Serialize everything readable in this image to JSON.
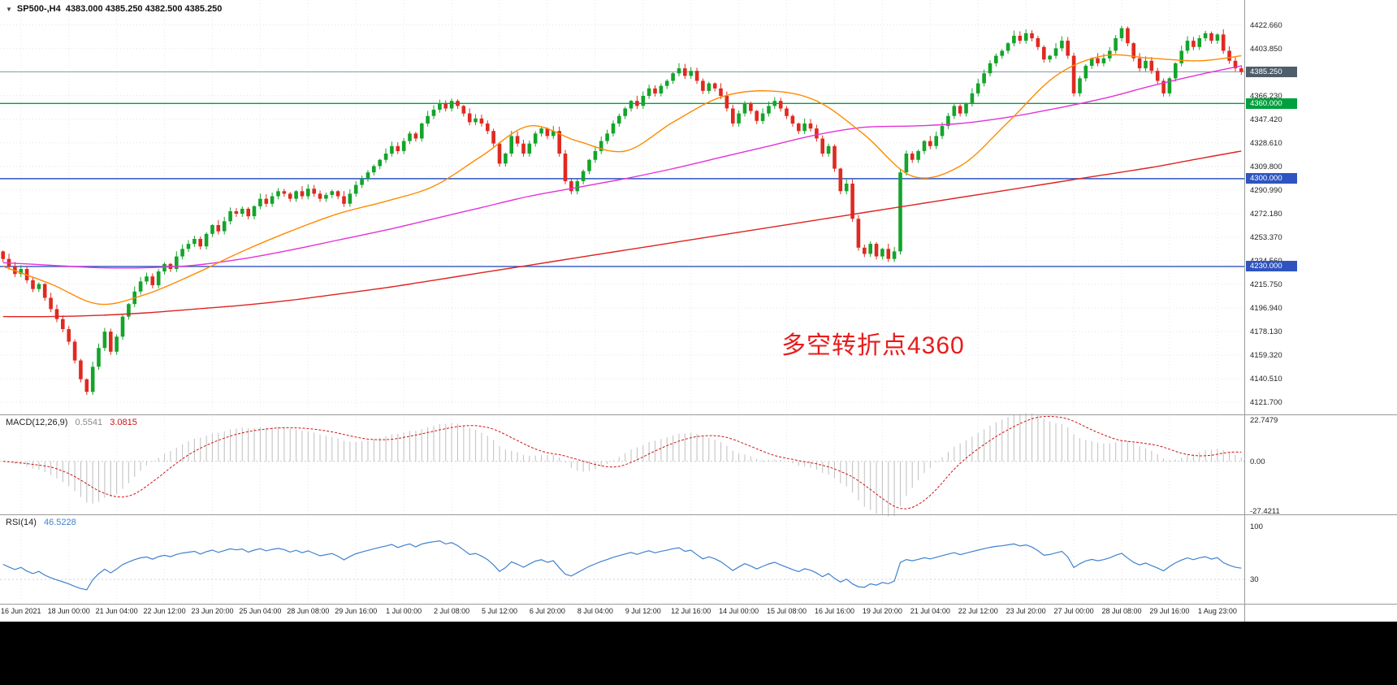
{
  "header": {
    "symbol_period": "SP500-,H4",
    "quote": "4383.000 4385.250 4382.500 4385.250"
  },
  "annotation": {
    "text": "多空转折点4360",
    "color": "#e81c1c"
  },
  "chart_data": {
    "type": "candlestick",
    "symbol_period": "SP500-,H4",
    "ohlc_display": {
      "open": "4383.000",
      "high": "4385.250",
      "low": "4382.500",
      "close": "4385.250"
    },
    "current_price": 4385.25,
    "first_open": 4242,
    "closes": [
      4236,
      4230,
      4224,
      4228,
      4219,
      4212,
      4216,
      4205,
      4196,
      4188,
      4180,
      4170,
      4155,
      4140,
      4130,
      4150,
      4165,
      4178,
      4162,
      4174,
      4190,
      4200,
      4210,
      4218,
      4222,
      4215,
      4226,
      4232,
      4228,
      4238,
      4244,
      4248,
      4252,
      4246,
      4256,
      4263,
      4258,
      4266,
      4274,
      4272,
      4276,
      4270,
      4278,
      4284,
      4280,
      4286,
      4290,
      4288,
      4284,
      4290,
      4286,
      4292,
      4288,
      4284,
      4287,
      4290,
      4286,
      4280,
      4288,
      4295,
      4300,
      4305,
      4310,
      4315,
      4320,
      4326,
      4322,
      4330,
      4336,
      4332,
      4344,
      4350,
      4355,
      4360,
      4356,
      4362,
      4358,
      4352,
      4345,
      4348,
      4344,
      4338,
      4328,
      4312,
      4320,
      4334,
      4328,
      4320,
      4328,
      4336,
      4340,
      4334,
      4338,
      4320,
      4298,
      4290,
      4298,
      4306,
      4315,
      4322,
      4330,
      4336,
      4344,
      4350,
      4356,
      4362,
      4358,
      4366,
      4372,
      4368,
      4374,
      4378,
      4384,
      4388,
      4382,
      4386,
      4378,
      4370,
      4376,
      4372,
      4366,
      4356,
      4344,
      4352,
      4360,
      4354,
      4346,
      4352,
      4358,
      4362,
      4356,
      4350,
      4344,
      4338,
      4344,
      4340,
      4332,
      4320,
      4326,
      4308,
      4290,
      4296,
      4268,
      4245,
      4240,
      4248,
      4238,
      4244,
      4236,
      4242,
      4305,
      4320,
      4315,
      4322,
      4330,
      4326,
      4334,
      4342,
      4350,
      4358,
      4352,
      4360,
      4368,
      4376,
      4384,
      4392,
      4398,
      4402,
      4408,
      4414,
      4410,
      4416,
      4412,
      4405,
      4395,
      4398,
      4404,
      4410,
      4398,
      4368,
      4380,
      4390,
      4396,
      4392,
      4396,
      4402,
      4412,
      4420,
      4408,
      4396,
      4388,
      4394,
      4386,
      4378,
      4368,
      4380,
      4392,
      4402,
      4410,
      4405,
      4412,
      4416,
      4410,
      4415,
      4402,
      4394,
      4388,
      4385.25
    ],
    "moving_averages": [
      {
        "name": "ma-fast",
        "color": "#ff8a00",
        "anchors": [
          4230,
          4216,
          4200,
          4208,
          4224,
          4242,
          4258,
          4272,
          4282,
          4294,
          4318,
          4342,
          4330,
          4322,
          4345,
          4365,
          4370,
          4362,
          4335,
          4302,
          4310,
          4345,
          4382,
          4398,
          4396,
          4394,
          4398
        ]
      },
      {
        "name": "ma-medium",
        "color": "#e332d8",
        "anchors": [
          4233,
          4231,
          4229,
          4229,
          4231,
          4236,
          4243,
          4251,
          4259,
          4268,
          4277,
          4286,
          4293,
          4300,
          4308,
          4317,
          4326,
          4335,
          4341,
          4342,
          4344,
          4349,
          4356,
          4364,
          4374,
          4383,
          4390
        ]
      },
      {
        "name": "ma-slow",
        "color": "#df2222",
        "anchors": [
          4190,
          4190,
          4191,
          4193,
          4196,
          4199,
          4203,
          4208,
          4213,
          4219,
          4225,
          4231,
          4237,
          4243,
          4249,
          4255,
          4261,
          4267,
          4273,
          4279,
          4285,
          4291,
          4297,
          4303,
          4309,
          4316,
          4322
        ]
      }
    ],
    "levels": {
      "pivot_green": 4360.0,
      "support_blue": [
        4300.0,
        4230.0
      ],
      "current": 4385.25
    },
    "y_axis_labels": [
      "4422.660",
      "4403.850",
      "4385.040",
      "4366.230",
      "4347.420",
      "4328.610",
      "4309.800",
      "4290.990",
      "4272.180",
      "4253.370",
      "4234.560",
      "4215.750",
      "4196.940",
      "4178.130",
      "4159.320",
      "4140.510",
      "4121.700"
    ],
    "y_axis_tags": [
      {
        "label": "4385.250",
        "price": 4385.25,
        "bg": "#4e5e6a",
        "line": "#7f98a8",
        "width": 1
      },
      {
        "label": "4360.000",
        "price": 4360.0,
        "bg": "#00a03c",
        "line": "#00a03c",
        "width": 1.4
      },
      {
        "label": "4300.000",
        "price": 4300.0,
        "bg": "#2f54c0",
        "line": "#2f54c0",
        "width": 1.4
      },
      {
        "label": "4230.000",
        "price": 4230.0,
        "bg": "#2f54c0",
        "line": "#2f54c0",
        "width": 1.4
      }
    ],
    "x_axis_labels": [
      "16 Jun 2021",
      "18 Jun 00:00",
      "21 Jun 04:00",
      "22 Jun 12:00",
      "23 Jun 20:00",
      "25 Jun 04:00",
      "28 Jun 08:00",
      "29 Jun 16:00",
      "1 Jul 00:00",
      "2 Jul 08:00",
      "5 Jul 12:00",
      "6 Jul 20:00",
      "8 Jul 04:00",
      "9 Jul 12:00",
      "12 Jul 16:00",
      "14 Jul 00:00",
      "15 Jul 08:00",
      "16 Jul 16:00",
      "19 Jul 20:00",
      "21 Jul 04:00",
      "22 Jul 12:00",
      "23 Jul 20:00",
      "27 Jul 00:00",
      "28 Jul 08:00",
      "29 Jul 16:00",
      "1 Aug 23:00"
    ],
    "indicators": {
      "macd": {
        "label": "MACD(12,26,9)",
        "value_hist": "0.5541",
        "value_signal": "3.0815",
        "axis": [
          "22.7479",
          "0.00",
          "-27.4211"
        ],
        "params": [
          12,
          26,
          9
        ],
        "hist_color": "#c4c4c4",
        "signal_color": "#cc1414"
      },
      "rsi": {
        "label": "RSI(14)",
        "value": "46.5228",
        "axis": [
          "100",
          "30"
        ],
        "period": 14,
        "color": "#3f82cf"
      }
    },
    "colors": {
      "up": "#14a42a",
      "down": "#df2a20"
    }
  }
}
